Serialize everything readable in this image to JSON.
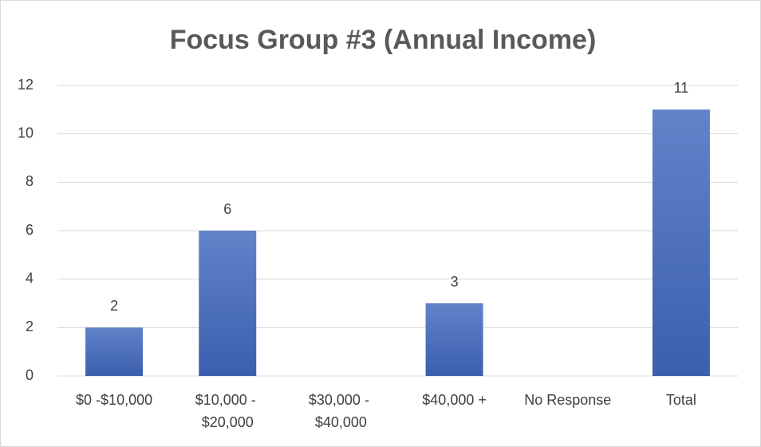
{
  "chart_data": {
    "type": "bar",
    "title": "Focus Group #3 (Annual Income)",
    "categories": [
      "$0 -$10,000",
      "$10,000 - $20,000",
      "$30,000 - $40,000",
      "$40,000 +",
      "No Response",
      "Total"
    ],
    "values": [
      2,
      6,
      0,
      3,
      0,
      11
    ],
    "color": "#4a6fbd",
    "ylim": [
      0,
      12
    ],
    "yticks": [
      0,
      2,
      4,
      6,
      8,
      10,
      12
    ],
    "grid": true
  }
}
